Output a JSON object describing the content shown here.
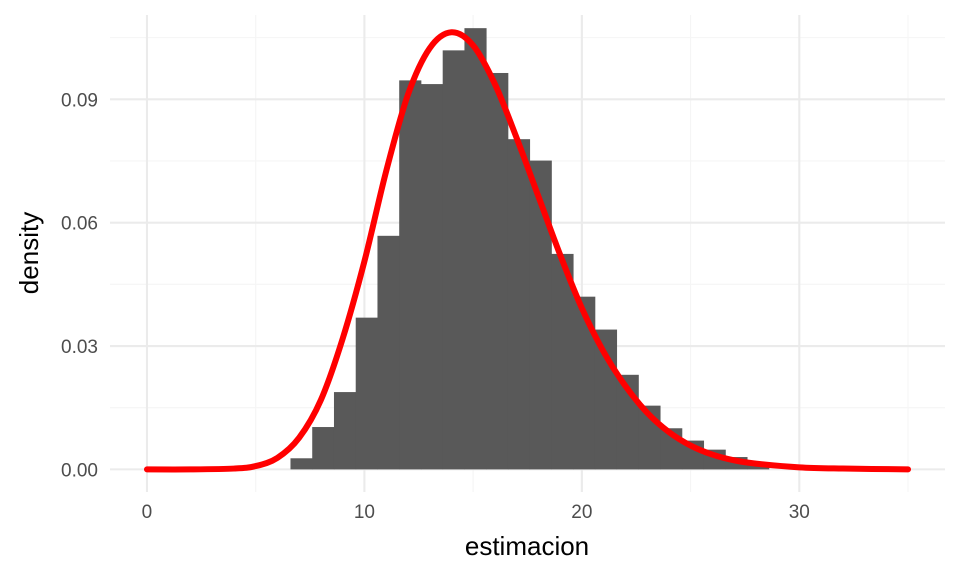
{
  "chart_data": {
    "type": "bar",
    "title": "",
    "xlabel": "estimacion",
    "ylabel": "density",
    "xlim": [
      -1.7,
      36.7
    ],
    "ylim": [
      -0.0055,
      0.1105
    ],
    "x_ticks": [
      0,
      10,
      20,
      30
    ],
    "x_tick_labels": [
      "0",
      "10",
      "20",
      "30"
    ],
    "y_ticks": [
      0.0,
      0.03,
      0.06,
      0.09
    ],
    "y_tick_labels": [
      "0.00",
      "0.03",
      "0.06",
      "0.09"
    ],
    "grid": true,
    "legend": "none",
    "colors": {
      "bars": "#595959",
      "curve": "#ff0000",
      "grid_major": "#ebebeb",
      "grid_minor": "#f5f5f5",
      "tick_text": "#4d4d4d",
      "axis_title": "#000000"
    },
    "histogram": {
      "bin_width": 1.0,
      "bins": [
        {
          "x0": 6.6,
          "x1": 7.6,
          "density": 0.0027
        },
        {
          "x0": 7.6,
          "x1": 8.6,
          "density": 0.0103
        },
        {
          "x0": 8.6,
          "x1": 9.6,
          "density": 0.0188
        },
        {
          "x0": 9.6,
          "x1": 10.6,
          "density": 0.0369
        },
        {
          "x0": 10.6,
          "x1": 11.6,
          "density": 0.0568
        },
        {
          "x0": 11.6,
          "x1": 12.6,
          "density": 0.0946
        },
        {
          "x0": 12.6,
          "x1": 13.6,
          "density": 0.0937
        },
        {
          "x0": 13.6,
          "x1": 14.6,
          "density": 0.1019
        },
        {
          "x0": 14.6,
          "x1": 15.6,
          "density": 0.1073
        },
        {
          "x0": 15.6,
          "x1": 16.6,
          "density": 0.0964
        },
        {
          "x0": 16.6,
          "x1": 17.6,
          "density": 0.0803
        },
        {
          "x0": 17.6,
          "x1": 18.6,
          "density": 0.0751
        },
        {
          "x0": 18.6,
          "x1": 19.6,
          "density": 0.0524
        },
        {
          "x0": 19.6,
          "x1": 20.6,
          "density": 0.042
        },
        {
          "x0": 20.6,
          "x1": 21.6,
          "density": 0.034
        },
        {
          "x0": 21.6,
          "x1": 22.6,
          "density": 0.023
        },
        {
          "x0": 22.6,
          "x1": 23.6,
          "density": 0.0155
        },
        {
          "x0": 23.6,
          "x1": 24.6,
          "density": 0.01
        },
        {
          "x0": 24.6,
          "x1": 25.6,
          "density": 0.007
        },
        {
          "x0": 25.6,
          "x1": 26.6,
          "density": 0.0048
        },
        {
          "x0": 26.6,
          "x1": 27.6,
          "density": 0.003
        },
        {
          "x0": 27.6,
          "x1": 28.6,
          "density": 0.0013
        }
      ]
    },
    "curve": {
      "type": "line",
      "x": [
        0,
        2,
        4,
        5,
        6,
        7,
        8,
        9,
        10,
        11,
        12,
        13,
        14,
        15,
        16,
        17,
        18,
        19,
        20,
        21,
        22,
        23,
        24,
        25,
        26,
        27,
        28,
        30,
        32,
        35
      ],
      "y": [
        0.0,
        0.0,
        0.0002,
        0.0008,
        0.0028,
        0.0077,
        0.0169,
        0.0318,
        0.0506,
        0.0725,
        0.0911,
        0.1024,
        0.1063,
        0.1031,
        0.0937,
        0.0806,
        0.0664,
        0.0522,
        0.0392,
        0.0286,
        0.0203,
        0.0138,
        0.0091,
        0.0058,
        0.0036,
        0.0022,
        0.0014,
        0.0005,
        0.0002,
        0.0
      ]
    }
  }
}
